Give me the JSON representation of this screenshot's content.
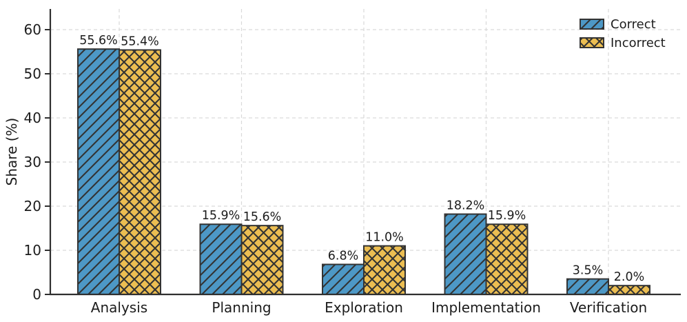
{
  "chart_data": {
    "type": "bar",
    "title": "",
    "categories": [
      "Analysis",
      "Planning",
      "Exploration",
      "Implementation",
      "Verification"
    ],
    "series": [
      {
        "name": "Correct",
        "color": "#4d98c6",
        "hatch": "diagonal",
        "values": [
          55.6,
          15.9,
          6.8,
          18.2,
          3.5
        ]
      },
      {
        "name": "Incorrect",
        "color": "#ecbe52",
        "hatch": "cross",
        "values": [
          55.4,
          15.6,
          11.0,
          15.9,
          2.0
        ]
      }
    ],
    "value_labels": [
      [
        "55.6%",
        "15.9%",
        "6.8%",
        "18.2%",
        "3.5%"
      ],
      [
        "55.4%",
        "15.6%",
        "11.0%",
        "15.9%",
        "2.0%"
      ]
    ],
    "xlabel": "",
    "ylabel": "Share (%)",
    "yticks": [
      0,
      10,
      20,
      30,
      40,
      50,
      60
    ],
    "ylim": [
      0,
      64.7
    ],
    "grid": "dashed, horizontal and vertical",
    "legend_position": "upper right",
    "legend": [
      "Correct",
      "Incorrect"
    ],
    "colors": {
      "correct_fill": "#4d98c6",
      "incorrect_fill": "#ecbe52",
      "bar_edge": "#333333",
      "hatch": "#333333",
      "grid": "#d9d9d9",
      "spine": "#2f2f2f",
      "text": "#1c1c1c"
    }
  }
}
